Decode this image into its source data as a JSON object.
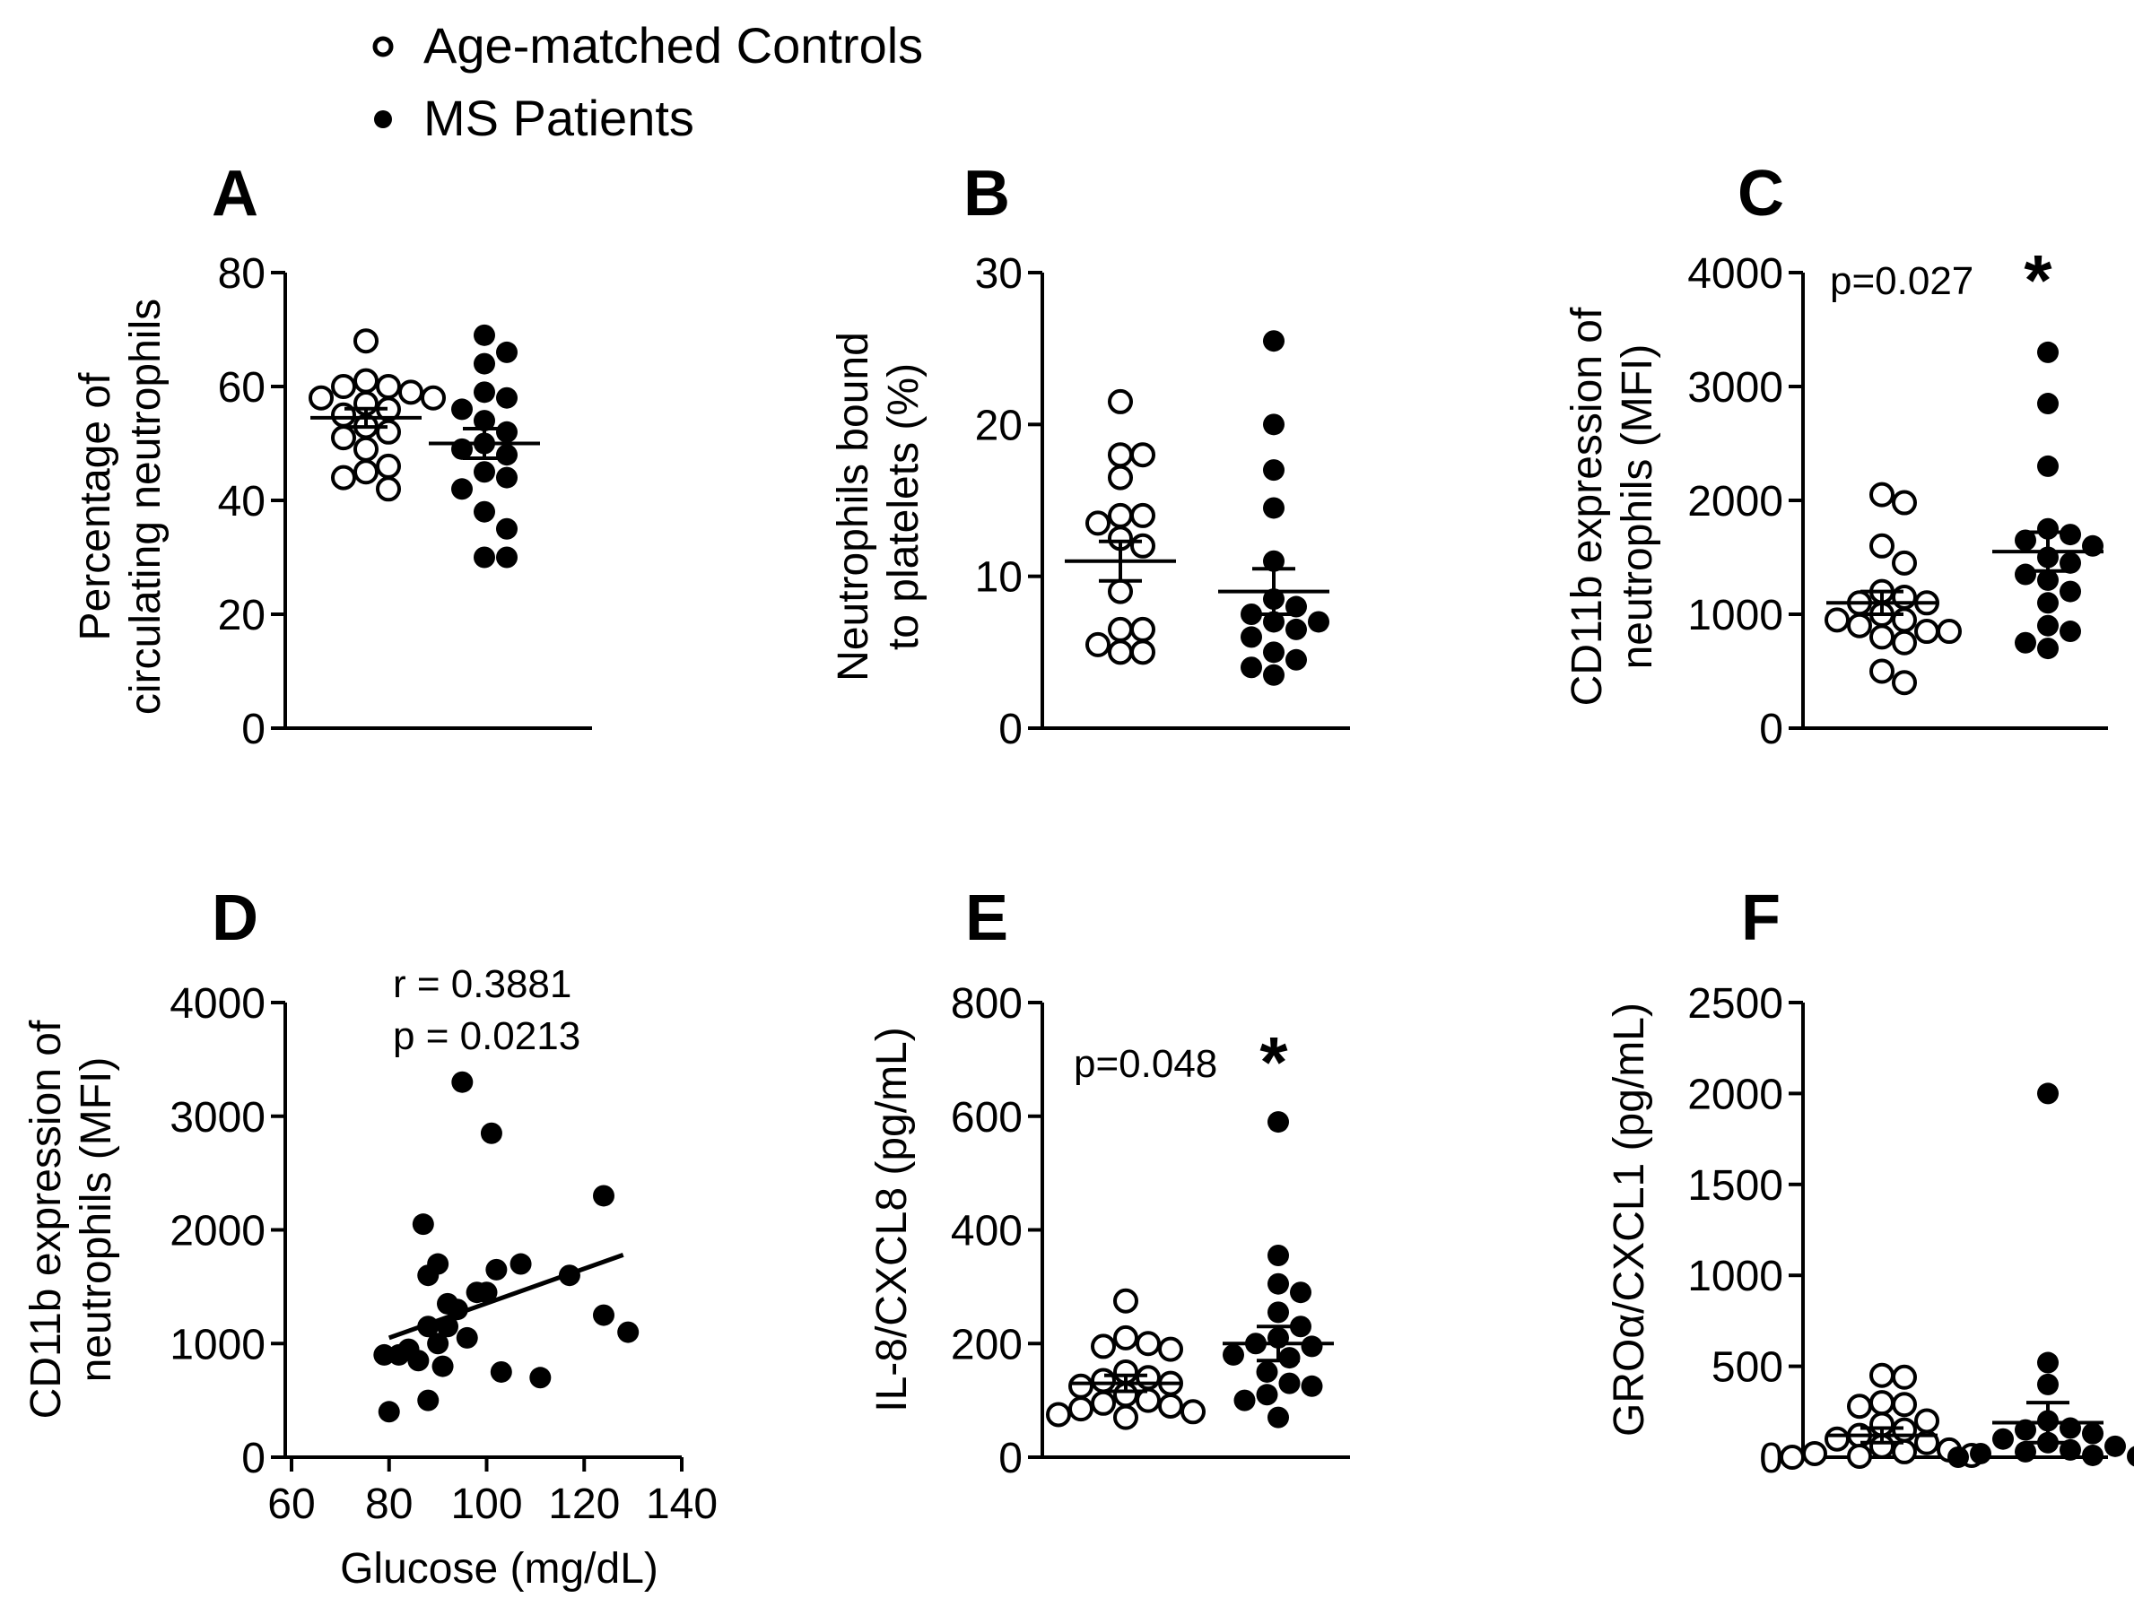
{
  "legend": {
    "items": [
      {
        "label": "Age-matched Controls",
        "marker": "open-circle"
      },
      {
        "label": "MS Patients",
        "marker": "filled-circle"
      }
    ]
  },
  "colors": {
    "ink": "#000000",
    "background": "#ffffff"
  },
  "chart_data": [
    {
      "id": "A",
      "panel": "A",
      "type": "scatter",
      "ylabel": [
        "Percentage of",
        "circulating neutrophils"
      ],
      "ylim": [
        0,
        80
      ],
      "yticks": [
        0,
        20,
        40,
        60,
        80
      ],
      "groups": [
        {
          "series": "Age-matched Controls",
          "marker": "open",
          "values": [
            68,
            61,
            60,
            60,
            59,
            58,
            58,
            57,
            56,
            55,
            53,
            52,
            51,
            49,
            46,
            45,
            44,
            42
          ],
          "mean": 54.5,
          "sem": 1.6
        },
        {
          "series": "MS Patients",
          "marker": "filled",
          "values": [
            69,
            66,
            64,
            59,
            58,
            56,
            54,
            52,
            50,
            49,
            48,
            45,
            44,
            42,
            38,
            35,
            30,
            30
          ],
          "mean": 50,
          "sem": 2.6
        }
      ]
    },
    {
      "id": "B",
      "panel": "B",
      "type": "scatter",
      "ylabel": [
        "Neutrophils bound",
        "to platelets (%)"
      ],
      "ylim": [
        0,
        30
      ],
      "yticks": [
        0,
        10,
        20,
        30
      ],
      "groups": [
        {
          "series": "Age-matched Controls",
          "marker": "open",
          "values": [
            21.5,
            18,
            18,
            16.5,
            14,
            14,
            13.5,
            12.5,
            12,
            9,
            6.5,
            6.5,
            5.5,
            5,
            5
          ],
          "mean": 11,
          "sem": 1.3
        },
        {
          "series": "MS Patients",
          "marker": "filled",
          "values": [
            25.5,
            20,
            17,
            14.5,
            11,
            8.5,
            8,
            7.5,
            7,
            7,
            6.5,
            6,
            5,
            4.5,
            4,
            3.5
          ],
          "mean": 9,
          "sem": 1.5
        }
      ]
    },
    {
      "id": "C",
      "panel": "C",
      "type": "scatter",
      "ylabel": [
        "CD11b expression of",
        "neutrophils (MFI)"
      ],
      "ylim": [
        0,
        4000
      ],
      "yticks": [
        0,
        1000,
        2000,
        3000,
        4000
      ],
      "annotation": "p=0.027",
      "significance": "*",
      "groups": [
        {
          "series": "Age-matched Controls",
          "marker": "open",
          "values": [
            2050,
            1980,
            1600,
            1450,
            1200,
            1150,
            1100,
            1100,
            1000,
            950,
            950,
            900,
            850,
            850,
            800,
            750,
            500,
            400
          ],
          "mean": 1100,
          "sem": 100
        },
        {
          "series": "MS Patients",
          "marker": "filled",
          "values": [
            3300,
            2850,
            2300,
            1750,
            1700,
            1650,
            1600,
            1500,
            1450,
            1350,
            1300,
            1200,
            1100,
            900,
            850,
            750,
            700
          ],
          "mean": 1550,
          "sem": 170
        }
      ]
    },
    {
      "id": "D",
      "panel": "D",
      "type": "scatter",
      "ylabel": [
        "CD11b expression of",
        "neutrophils (MFI)"
      ],
      "xlabel": "Glucose (mg/dL)",
      "xlim": [
        60,
        140
      ],
      "xticks": [
        60,
        80,
        100,
        120,
        140
      ],
      "ylim": [
        0,
        4000
      ],
      "yticks": [
        0,
        1000,
        2000,
        3000,
        4000
      ],
      "annotation": [
        "r = 0.3881",
        "p = 0.0213"
      ],
      "points": [
        {
          "x": 95,
          "y": 3300
        },
        {
          "x": 101,
          "y": 2850
        },
        {
          "x": 124,
          "y": 2300
        },
        {
          "x": 87,
          "y": 2050
        },
        {
          "x": 90,
          "y": 1700
        },
        {
          "x": 107,
          "y": 1700
        },
        {
          "x": 102,
          "y": 1650
        },
        {
          "x": 88,
          "y": 1600
        },
        {
          "x": 117,
          "y": 1600
        },
        {
          "x": 98,
          "y": 1450
        },
        {
          "x": 100,
          "y": 1450
        },
        {
          "x": 92,
          "y": 1350
        },
        {
          "x": 94,
          "y": 1300
        },
        {
          "x": 124,
          "y": 1250
        },
        {
          "x": 92,
          "y": 1150
        },
        {
          "x": 88,
          "y": 1150
        },
        {
          "x": 96,
          "y": 1050
        },
        {
          "x": 129,
          "y": 1100
        },
        {
          "x": 90,
          "y": 1000
        },
        {
          "x": 84,
          "y": 950
        },
        {
          "x": 79,
          "y": 900
        },
        {
          "x": 82,
          "y": 900
        },
        {
          "x": 86,
          "y": 850
        },
        {
          "x": 91,
          "y": 800
        },
        {
          "x": 103,
          "y": 750
        },
        {
          "x": 111,
          "y": 700
        },
        {
          "x": 88,
          "y": 500
        },
        {
          "x": 80,
          "y": 400
        }
      ],
      "fit": {
        "x": [
          80,
          128
        ],
        "y": [
          1050,
          1780
        ]
      }
    },
    {
      "id": "E",
      "panel": "E",
      "type": "scatter",
      "ylabel": [
        "IL-8/CXCL8 (pg/mL)"
      ],
      "ylim": [
        0,
        800
      ],
      "yticks": [
        0,
        200,
        400,
        600,
        800
      ],
      "annotation": "p=0.048",
      "significance": "*",
      "groups": [
        {
          "series": "Age-matched Controls",
          "marker": "open",
          "values": [
            275,
            210,
            200,
            195,
            190,
            150,
            140,
            135,
            130,
            125,
            110,
            100,
            95,
            90,
            85,
            80,
            75,
            70
          ],
          "mean": 130,
          "sem": 14
        },
        {
          "series": "MS Patients",
          "marker": "filled",
          "values": [
            590,
            355,
            305,
            290,
            255,
            230,
            210,
            200,
            195,
            180,
            175,
            150,
            130,
            125,
            110,
            100,
            70
          ],
          "mean": 200,
          "sem": 30
        }
      ]
    },
    {
      "id": "F",
      "panel": "F",
      "type": "scatter",
      "ylabel": [
        "GROα/CXCL1 (pg/mL)"
      ],
      "ylim": [
        0,
        2500
      ],
      "yticks": [
        0,
        500,
        1000,
        1500,
        2000,
        2500
      ],
      "groups": [
        {
          "series": "Age-matched Controls",
          "marker": "open",
          "values": [
            450,
            440,
            300,
            290,
            280,
            200,
            180,
            150,
            120,
            100,
            80,
            60,
            40,
            30,
            20,
            10,
            5,
            0
          ],
          "mean": 120,
          "sem": 40
        },
        {
          "series": "MS Patients",
          "marker": "filled",
          "values": [
            2000,
            520,
            400,
            200,
            160,
            150,
            130,
            100,
            80,
            60,
            40,
            30,
            20,
            10,
            5,
            0
          ],
          "mean": 190,
          "sem": 110
        }
      ]
    }
  ]
}
